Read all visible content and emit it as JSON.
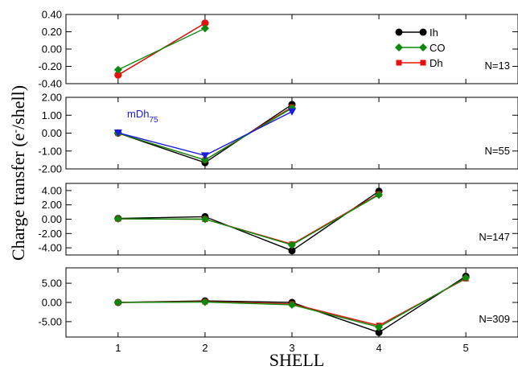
{
  "chart_data": {
    "type": "line",
    "xlabel": "SHELL",
    "ylabel_main": "Charge transfer (e",
    "ylabel_sup": "-",
    "ylabel_tail": "/shell)",
    "x_ticks": [
      1,
      2,
      3,
      4,
      5
    ],
    "xlim": [
      0.4,
      5.6
    ],
    "legend": {
      "placement": "top-right",
      "entries": [
        {
          "name": "Ih",
          "color": "#000000",
          "marker": "circle"
        },
        {
          "name": "CO",
          "color": "#0a8a0a",
          "marker": "diamond"
        },
        {
          "name": "Dh",
          "color": "#e8100a",
          "marker": "square"
        }
      ]
    },
    "panels": [
      {
        "label": "N=13",
        "ylim": [
          -0.4,
          0.4
        ],
        "y_ticks": [
          -0.4,
          -0.2,
          0.0,
          0.2,
          0.4
        ],
        "y_tick_labels": [
          "-0.40",
          "-0.20",
          "0.00",
          "0.20",
          "0.40"
        ],
        "series": [
          {
            "name": "Ih",
            "color": "#000000",
            "marker": "circle",
            "x": [
              1,
              2
            ],
            "y": [
              -0.3,
              0.3
            ]
          },
          {
            "name": "Dh",
            "color": "#e8100a",
            "marker": "circle",
            "x": [
              1,
              2
            ],
            "y": [
              -0.3,
              0.3
            ]
          },
          {
            "name": "CO",
            "color": "#0a8a0a",
            "marker": "diamond",
            "x": [
              1,
              2
            ],
            "y": [
              -0.24,
              0.24
            ]
          }
        ]
      },
      {
        "label": "N=55",
        "annotation": {
          "base": "mDh",
          "sub": "75",
          "color": "#1a1adc"
        },
        "ylim": [
          -2.0,
          2.0
        ],
        "y_ticks": [
          -2.0,
          -1.0,
          0.0,
          1.0,
          2.0
        ],
        "y_tick_labels": [
          "-2.00",
          "-1.00",
          "0.00",
          "1.00",
          "2.00"
        ],
        "series": [
          {
            "name": "Ih",
            "color": "#000000",
            "marker": "circle",
            "x": [
              1,
              2,
              3
            ],
            "y": [
              0.0,
              -1.65,
              1.6
            ]
          },
          {
            "name": "Dh",
            "color": "#e8100a",
            "marker": "square",
            "x": [
              1,
              2,
              3
            ],
            "y": [
              0.0,
              -1.5,
              1.45
            ]
          },
          {
            "name": "CO",
            "color": "#0a8a0a",
            "marker": "diamond",
            "x": [
              1,
              2,
              3
            ],
            "y": [
              0.0,
              -1.5,
              1.4
            ]
          },
          {
            "name": "mDh75",
            "color": "#1a1adc",
            "marker": "triangle",
            "x": [
              1,
              2,
              3
            ],
            "y": [
              0.02,
              -1.25,
              1.2
            ]
          }
        ]
      },
      {
        "label": "N=147",
        "ylim": [
          -5.0,
          5.0
        ],
        "y_ticks": [
          -4,
          -2,
          0,
          2,
          4
        ],
        "y_tick_labels": [
          "-4.00",
          "-2.00",
          "0.00",
          "2.00",
          "4.00"
        ],
        "series": [
          {
            "name": "Ih",
            "color": "#000000",
            "marker": "circle",
            "x": [
              1,
              2,
              3,
              4
            ],
            "y": [
              0.1,
              0.35,
              -4.4,
              3.9
            ]
          },
          {
            "name": "Dh",
            "color": "#e8100a",
            "marker": "square",
            "x": [
              1,
              2,
              3,
              4
            ],
            "y": [
              0.05,
              0.0,
              -3.5,
              3.5
            ]
          },
          {
            "name": "CO",
            "color": "#0a8a0a",
            "marker": "diamond",
            "x": [
              1,
              2,
              3,
              4
            ],
            "y": [
              0.05,
              0.0,
              -3.6,
              3.4
            ]
          }
        ]
      },
      {
        "label": "N=309",
        "ylim": [
          -9.0,
          9.0
        ],
        "y_ticks": [
          -5,
          0,
          5
        ],
        "y_tick_labels": [
          "-5.00",
          "0.00",
          "5.00"
        ],
        "series": [
          {
            "name": "Ih",
            "color": "#000000",
            "marker": "circle",
            "x": [
              1,
              2,
              3,
              4,
              5
            ],
            "y": [
              0.0,
              0.4,
              0.0,
              -7.8,
              6.8
            ]
          },
          {
            "name": "Dh",
            "color": "#e8100a",
            "marker": "square",
            "x": [
              1,
              2,
              3,
              4,
              5
            ],
            "y": [
              0.0,
              0.2,
              -0.4,
              -6.0,
              6.2
            ]
          },
          {
            "name": "CO",
            "color": "#0a8a0a",
            "marker": "diamond",
            "x": [
              1,
              2,
              3,
              4,
              5
            ],
            "y": [
              0.0,
              0.1,
              -0.6,
              -6.4,
              6.4
            ]
          }
        ]
      }
    ]
  }
}
